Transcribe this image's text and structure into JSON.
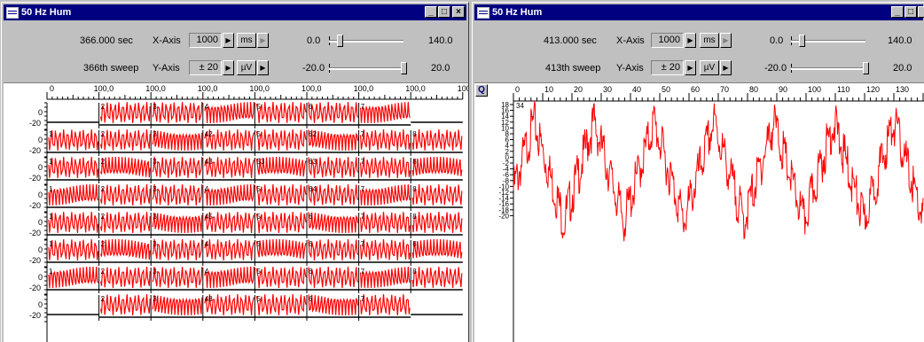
{
  "left": {
    "title": "50 Hz Hum",
    "time": "366.000 sec",
    "sweep": "366th sweep",
    "x_axis": {
      "label": "X-Axis",
      "value": "1000",
      "unit": "ms",
      "min": "0.0",
      "max": "140.0",
      "level": 0.12
    },
    "y_axis": {
      "label": "Y-Axis",
      "value": "± 20",
      "unit": "µV",
      "min": "-20.0",
      "max": "20.0",
      "level": 1.0
    },
    "top_ticks": [
      "0",
      "100,0",
      "100,0",
      "100,0",
      "100,0",
      "100,0",
      "100,0",
      "100,0",
      "100"
    ],
    "ylabels": [
      "0",
      "-20"
    ],
    "panels": [
      [
        "",
        "2",
        "3",
        "4",
        "5",
        "6",
        "7",
        ""
      ],
      [
        "1",
        "2",
        "3",
        "42",
        "5",
        "62",
        "7",
        "8"
      ],
      [
        "1",
        "2",
        "3",
        "43",
        "53",
        "63",
        "7",
        "8"
      ],
      [
        "1",
        "2",
        "3",
        "4",
        "5",
        "64",
        "7",
        "8"
      ],
      [
        "1",
        "2",
        "3",
        "45",
        "5",
        "6",
        "7",
        "8"
      ],
      [
        "1",
        "2",
        "3",
        "4",
        "5",
        "6",
        "7",
        "8"
      ],
      [
        "1",
        "2",
        "3",
        "4",
        "5",
        "6",
        "7",
        "8"
      ],
      [
        "",
        "2",
        "3",
        "48",
        "5",
        "6",
        "7",
        ""
      ]
    ]
  },
  "right": {
    "title": "50 Hz Hum",
    "time": "413.000 sec",
    "sweep": "413th sweep",
    "x_axis": {
      "label": "X-Axis",
      "value": "1000",
      "unit": "ms",
      "min": "0.0",
      "max": "140.0",
      "level": 0.12
    },
    "y_axis": {
      "label": "Y-Axis",
      "value": "± 20",
      "unit": "µV",
      "min": "-20.0",
      "max": "20.0",
      "level": 1.0
    },
    "channel": "34",
    "x_ticks": [
      "0",
      "10",
      "20",
      "30",
      "40",
      "50",
      "60",
      "70",
      "80",
      "90",
      "100",
      "110",
      "120",
      "130"
    ],
    "y_ticks": [
      "18",
      "16",
      "14",
      "12",
      "10",
      "8",
      "6",
      "4",
      "2",
      "0",
      "-2",
      "-4",
      "-6",
      "-8",
      "-10",
      "-12",
      "-14",
      "-16",
      "-18",
      "-20"
    ]
  },
  "colors": {
    "trace": "#ff0000",
    "title_bar": "#000080"
  },
  "icons": {
    "window": "window-icon",
    "minimize": "minimize-icon",
    "maximize": "maximize-icon",
    "close": "close-icon",
    "zoom": "magnifier-icon"
  }
}
